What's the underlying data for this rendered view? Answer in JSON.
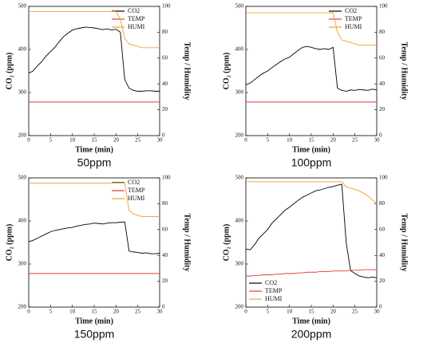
{
  "chart_data": [
    {
      "type": "line",
      "caption": "50ppm",
      "xlabel": "Time (min)",
      "ylabel": "CO₂ (ppm)",
      "y2label": "Temp / Humidity",
      "xlim": [
        0,
        30
      ],
      "xticks": [
        0,
        5,
        10,
        15,
        20,
        25,
        30
      ],
      "ylim": [
        200,
        500
      ],
      "yticks": [
        200,
        300,
        400,
        500
      ],
      "y2lim": [
        0,
        100
      ],
      "y2ticks": [
        0,
        20,
        40,
        60,
        80,
        100
      ],
      "legend": "upper right",
      "x": [
        0,
        1,
        2,
        3,
        4,
        5,
        6,
        7,
        8,
        9,
        10,
        11,
        12,
        13,
        14,
        15,
        16,
        17,
        18,
        19,
        20,
        21,
        22,
        23,
        24,
        25,
        26,
        27,
        28,
        29,
        30
      ],
      "series": [
        {
          "name": "CO2",
          "color": "#000000",
          "values": [
            345,
            350,
            362,
            372,
            385,
            395,
            405,
            418,
            430,
            438,
            445,
            448,
            450,
            452,
            451,
            450,
            448,
            446,
            448,
            445,
            447,
            440,
            330,
            310,
            305,
            303,
            303,
            304,
            304,
            303,
            303
          ]
        },
        {
          "name": "TEMP",
          "color": "#e03c3c",
          "axis": "y2",
          "values": [
            26,
            26,
            26,
            26,
            26,
            26,
            26,
            26,
            26,
            26,
            26,
            26,
            26,
            26,
            26,
            26,
            26,
            26,
            26,
            26,
            26,
            26,
            26,
            26,
            26,
            26,
            26,
            26,
            26,
            26,
            26
          ]
        },
        {
          "name": "HUMI",
          "color": "#f0a030",
          "axis": "y2",
          "values": [
            96,
            96,
            96,
            96,
            96,
            96,
            96,
            96,
            96,
            96,
            96,
            96,
            96,
            96,
            96,
            96,
            96,
            96,
            96,
            96,
            96,
            90,
            75,
            71,
            70,
            69,
            68,
            68,
            68,
            68,
            68
          ]
        }
      ]
    },
    {
      "type": "line",
      "caption": "100ppm",
      "xlabel": "Time (min)",
      "ylabel": "CO₂ (ppm)",
      "y2label": "Temp / Humidity",
      "xlim": [
        0,
        30
      ],
      "xticks": [
        0,
        5,
        10,
        15,
        20,
        25,
        30
      ],
      "ylim": [
        200,
        500
      ],
      "yticks": [
        200,
        300,
        400,
        500
      ],
      "y2lim": [
        0,
        100
      ],
      "y2ticks": [
        0,
        20,
        40,
        60,
        80,
        100
      ],
      "legend": "upper right",
      "x": [
        0,
        1,
        2,
        3,
        4,
        5,
        6,
        7,
        8,
        9,
        10,
        11,
        12,
        13,
        14,
        15,
        16,
        17,
        18,
        19,
        20,
        21,
        22,
        23,
        24,
        25,
        26,
        27,
        28,
        29,
        30
      ],
      "series": [
        {
          "name": "CO2",
          "color": "#000000",
          "values": [
            318,
            322,
            330,
            338,
            345,
            350,
            358,
            365,
            372,
            378,
            382,
            390,
            398,
            405,
            407,
            405,
            402,
            400,
            402,
            400,
            405,
            310,
            305,
            303,
            306,
            305,
            307,
            306,
            305,
            308,
            306
          ]
        },
        {
          "name": "TEMP",
          "color": "#e03c3c",
          "axis": "y2",
          "values": [
            26,
            26,
            26,
            26,
            26,
            26,
            26,
            26,
            26,
            26,
            26,
            26,
            26,
            26,
            26,
            26,
            26,
            26,
            26,
            26,
            26,
            26,
            26,
            26,
            26,
            26,
            26,
            26,
            26,
            26,
            26
          ]
        },
        {
          "name": "HUMI",
          "color": "#f0a030",
          "axis": "y2",
          "values": [
            95,
            95,
            95,
            95,
            95,
            95,
            95,
            95,
            95,
            95,
            95,
            95,
            95,
            95,
            95,
            95,
            95,
            95,
            95,
            95,
            95,
            80,
            74,
            73,
            72,
            71,
            70,
            70,
            70,
            70,
            70
          ]
        }
      ]
    },
    {
      "type": "line",
      "caption": "150ppm",
      "xlabel": "Time (min)",
      "ylabel": "CO₂ (ppm)",
      "y2label": "Temp / Humidity",
      "xlim": [
        0,
        30
      ],
      "xticks": [
        0,
        5,
        10,
        15,
        20,
        25,
        30
      ],
      "ylim": [
        200,
        500
      ],
      "yticks": [
        200,
        300,
        400,
        500
      ],
      "y2lim": [
        0,
        100
      ],
      "y2ticks": [
        0,
        20,
        40,
        60,
        80,
        100
      ],
      "legend": "upper right",
      "x": [
        0,
        1,
        2,
        3,
        4,
        5,
        6,
        7,
        8,
        9,
        10,
        11,
        12,
        13,
        14,
        15,
        16,
        17,
        18,
        19,
        20,
        21,
        22,
        23,
        24,
        25,
        26,
        27,
        28,
        29,
        30
      ],
      "series": [
        {
          "name": "CO2",
          "color": "#000000",
          "values": [
            352,
            355,
            360,
            365,
            370,
            375,
            378,
            380,
            382,
            384,
            385,
            388,
            390,
            392,
            393,
            395,
            394,
            393,
            395,
            396,
            396,
            397,
            398,
            330,
            328,
            327,
            325,
            326,
            324,
            324,
            325
          ]
        },
        {
          "name": "TEMP",
          "color": "#e03c3c",
          "axis": "y2",
          "values": [
            26,
            26,
            26,
            26,
            26,
            26,
            26,
            26,
            26,
            26,
            26,
            26,
            26,
            26,
            26,
            26,
            26,
            26,
            26,
            26,
            26,
            26,
            26,
            26,
            26,
            26,
            26,
            26,
            26,
            26,
            26
          ]
        },
        {
          "name": "HUMI",
          "color": "#f0a030",
          "axis": "y2",
          "values": [
            96,
            96,
            96,
            96,
            96,
            96,
            96,
            96,
            96,
            96,
            96,
            96,
            96,
            96,
            96,
            96,
            96,
            96,
            96,
            96,
            96,
            96,
            96,
            75,
            72,
            71,
            70,
            70,
            70,
            70,
            70
          ]
        }
      ]
    },
    {
      "type": "line",
      "caption": "200ppm",
      "xlabel": "Time (min)",
      "ylabel": "CO₂ (ppm)",
      "y2label": "Temp / Humidity",
      "xlim": [
        0,
        30
      ],
      "xticks": [
        0,
        5,
        10,
        15,
        20,
        25,
        30
      ],
      "ylim": [
        200,
        500
      ],
      "yticks": [
        200,
        300,
        400,
        500
      ],
      "y2lim": [
        0,
        100
      ],
      "y2ticks": [
        0,
        20,
        40,
        60,
        80,
        100
      ],
      "legend": "lower left",
      "x": [
        0,
        1,
        2,
        3,
        4,
        5,
        6,
        7,
        8,
        9,
        10,
        11,
        12,
        13,
        14,
        15,
        16,
        17,
        18,
        19,
        20,
        21,
        22,
        23,
        24,
        25,
        26,
        27,
        28,
        29,
        30
      ],
      "series": [
        {
          "name": "CO2",
          "color": "#000000",
          "values": [
            335,
            333,
            345,
            360,
            370,
            380,
            395,
            405,
            415,
            425,
            432,
            440,
            448,
            455,
            460,
            465,
            470,
            472,
            475,
            478,
            480,
            483,
            485,
            350,
            285,
            278,
            272,
            270,
            268,
            270,
            268
          ]
        },
        {
          "name": "TEMP",
          "color": "#e03c3c",
          "axis": "y2",
          "values": [
            24,
            24,
            24.5,
            24.5,
            25,
            25,
            25,
            25.5,
            25.5,
            26,
            26,
            26,
            26.5,
            26.5,
            27,
            27,
            27,
            27.5,
            27.5,
            27.5,
            28,
            28,
            28,
            28,
            28.5,
            28.5,
            28.5,
            29,
            29,
            29,
            29
          ]
        },
        {
          "name": "HUMI",
          "color": "#f0a030",
          "axis": "y2",
          "values": [
            97,
            97,
            97,
            97,
            97,
            97,
            97,
            97,
            97,
            97,
            97,
            97,
            97,
            97,
            97,
            97,
            97,
            97,
            97,
            97,
            97,
            97,
            97,
            93,
            92,
            91,
            90,
            88,
            86,
            83,
            80
          ]
        }
      ]
    }
  ]
}
